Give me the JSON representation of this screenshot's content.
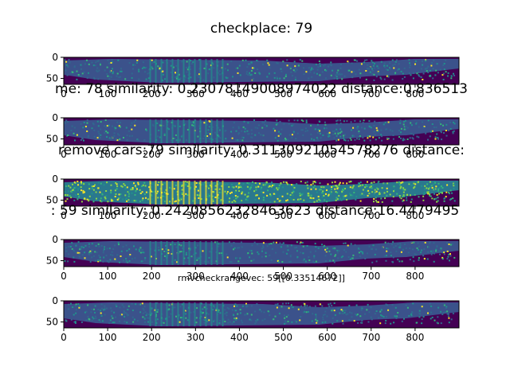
{
  "chart_data": {
    "type": "heatmap",
    "colormap": "viridis",
    "panels": [
      {
        "title": "checkplace: 79",
        "xticks": [
          "0",
          "100",
          "200",
          "300",
          "400",
          "500",
          "600",
          "700",
          "800"
        ],
        "yticks": [
          "0",
          "50"
        ],
        "xlim": [
          0,
          900
        ],
        "ylim": [
          64,
          0
        ],
        "style": "dim"
      },
      {
        "title": "me: 78  similarity:   0.23078149008974022  distance:0.836513",
        "xticks": [
          "0",
          "100",
          "200",
          "300",
          "400",
          "500",
          "600",
          "700",
          "800"
        ],
        "yticks": [
          "0",
          "50"
        ],
        "xlim": [
          0,
          900
        ],
        "ylim": [
          64,
          0
        ],
        "style": "dim"
      },
      {
        "title": "remove cars:79 similarity:   0.31130921054578276  distance:",
        "xticks": [
          "0",
          "100",
          "200",
          "300",
          "400",
          "500",
          "600",
          "700",
          "800"
        ],
        "yticks": [
          "0",
          "50"
        ],
        "xlim": [
          0,
          900
        ],
        "ylim": [
          64,
          0
        ],
        "style": "bright"
      },
      {
        "title": ": 59 similarity:   0.24208562328463623  distance:16.4479495",
        "xticks": [
          "0",
          "100",
          "200",
          "300",
          "400",
          "500",
          "600",
          "700",
          "800"
        ],
        "yticks": [
          "0",
          "50"
        ],
        "xlim": [
          0,
          900
        ],
        "ylim": [
          64,
          0
        ],
        "style": "dim"
      },
      {
        "title": "rmvcheckrangevec: 59[[0.33514672]]",
        "xticks": [
          "0",
          "100",
          "200",
          "300",
          "400",
          "500",
          "600",
          "700",
          "800"
        ],
        "yticks": [
          "0",
          "50"
        ],
        "xlim": [
          0,
          900
        ],
        "ylim": [
          64,
          0
        ],
        "style": "dim"
      }
    ]
  }
}
